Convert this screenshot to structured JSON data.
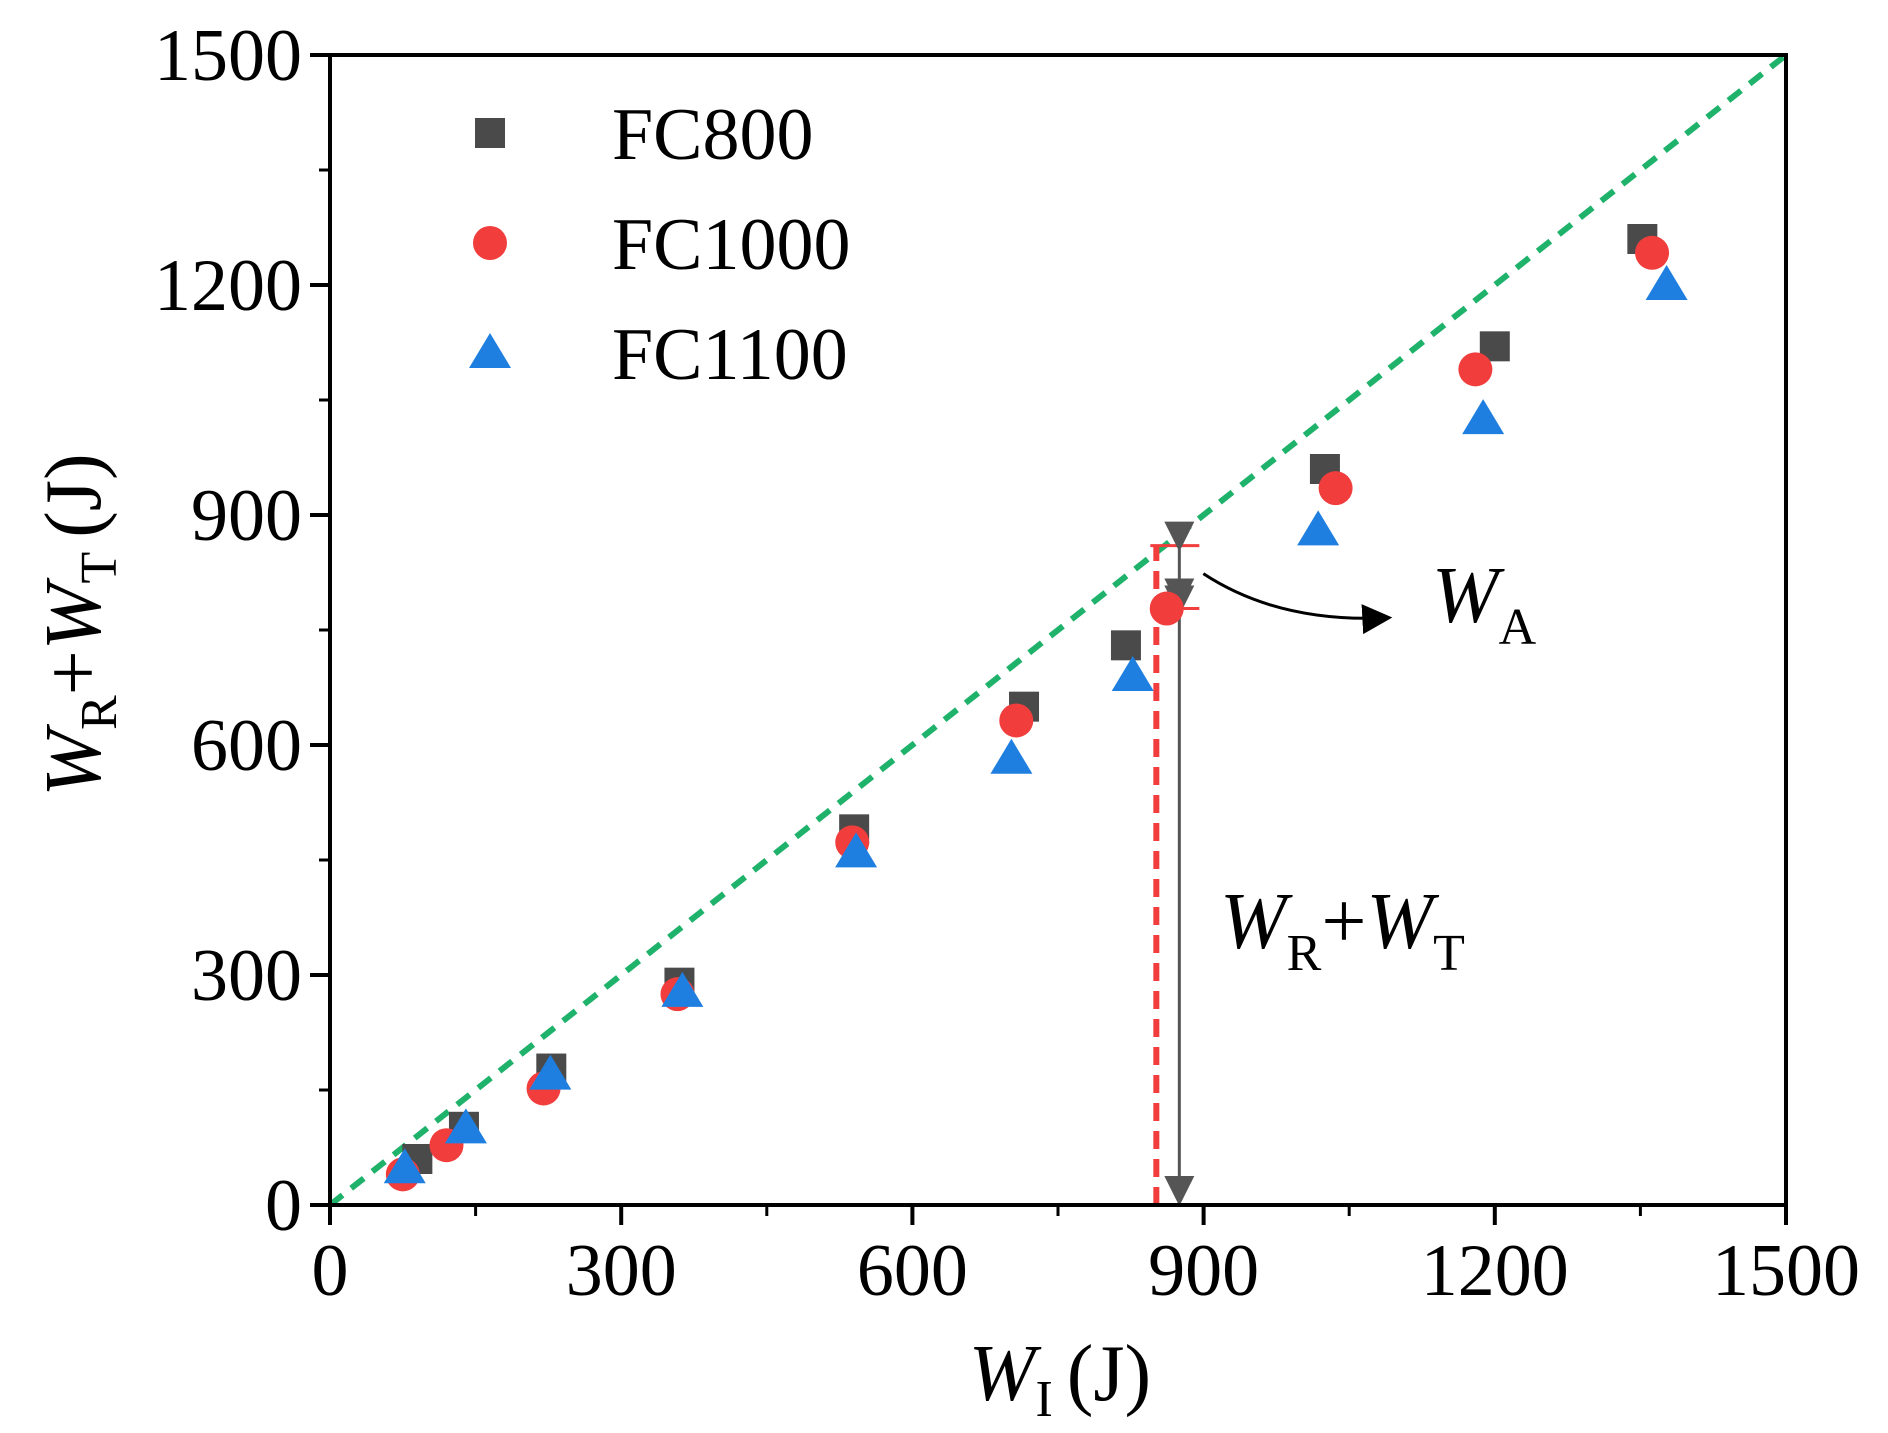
{
  "chart_data": {
    "type": "scatter",
    "title": "",
    "xlabel": {
      "main": "W",
      "sub": "I",
      "unit": "(J)"
    },
    "ylabel": {
      "w1": "W",
      "sub1": "R",
      "plus": "+",
      "w2": "W",
      "sub2": "T",
      "unit": "(J)"
    },
    "xlim": [
      0,
      1500
    ],
    "ylim": [
      0,
      1500
    ],
    "xticks": [
      0,
      300,
      600,
      900,
      1200,
      1500
    ],
    "yticks": [
      0,
      300,
      600,
      900,
      1200,
      1500
    ],
    "xtick_labels": [
      "0",
      "300",
      "600",
      "900",
      "1200",
      "1500"
    ],
    "ytick_labels": [
      "0",
      "300",
      "600",
      "900",
      "1200",
      "1500"
    ],
    "legend_position": "top-left",
    "reference_line": {
      "name": "y = x",
      "x": [
        0,
        1500
      ],
      "y": [
        0,
        1500
      ],
      "color": "#1fb26b",
      "style": "dashed"
    },
    "series": [
      {
        "name": "FC800",
        "marker": "square",
        "color": "#4a4a4a",
        "x": [
          90,
          138,
          228,
          360,
          540,
          715,
          820,
          1025,
          1200,
          1352
        ],
        "y": [
          60,
          102,
          178,
          290,
          490,
          650,
          730,
          960,
          1120,
          1260
        ]
      },
      {
        "name": "FC1000",
        "marker": "circle",
        "color": "#f23d3d",
        "x": [
          75,
          120,
          220,
          358,
          538,
          707,
          862,
          1036,
          1180,
          1362
        ],
        "y": [
          40,
          78,
          152,
          275,
          473,
          632,
          778,
          935,
          1090,
          1242
        ]
      },
      {
        "name": "FC1100",
        "marker": "triangle",
        "color": "#1f7fe0",
        "x": [
          77,
          140,
          227,
          363,
          542,
          702,
          827,
          1018,
          1188,
          1377
        ],
        "y": [
          48,
          100,
          170,
          278,
          460,
          582,
          690,
          880,
          1025,
          1200
        ]
      }
    ],
    "annotation": {
      "x": 875,
      "dashed_from_y": 0,
      "dashed_to_y": 860,
      "wa_from_y": 778,
      "wa_to_y": 860,
      "wa_label": {
        "main": "W",
        "sub": "A"
      },
      "sum_label": {
        "w1": "W",
        "sub1": "R",
        "plus": "+",
        "w2": "W",
        "sub2": "T"
      }
    }
  }
}
